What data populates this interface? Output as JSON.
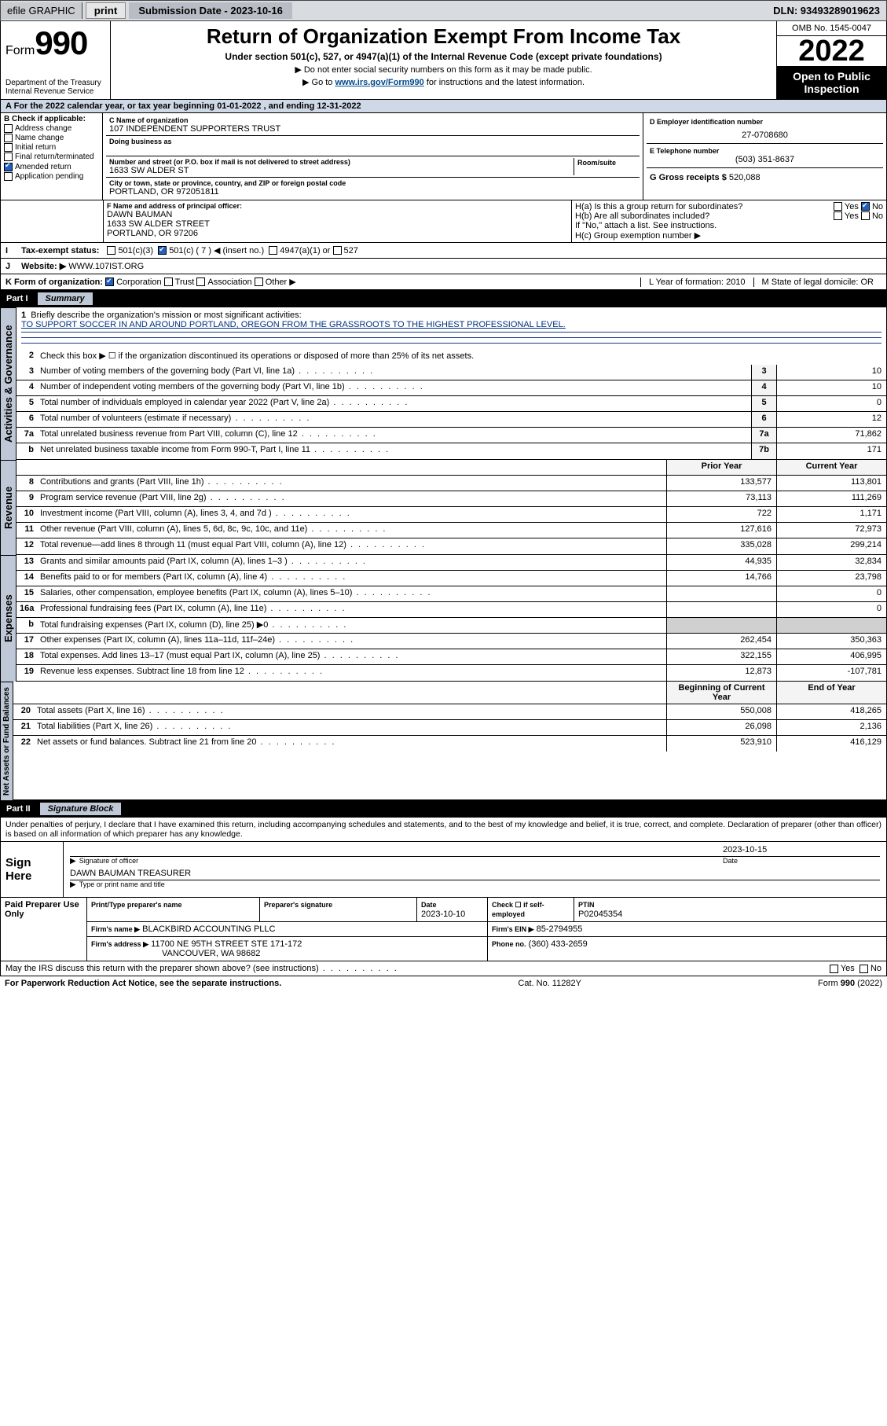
{
  "topbar": {
    "efile": "efile GRAPHIC",
    "print": "print",
    "sub_label": "Submission Date - 2023-10-16",
    "dln_label": "DLN: 93493289019623"
  },
  "header": {
    "form_word": "Form",
    "form_num": "990",
    "dept1": "Department of the Treasury",
    "dept2": "Internal Revenue Service",
    "title": "Return of Organization Exempt From Income Tax",
    "sub1": "Under section 501(c), 527, or 4947(a)(1) of the Internal Revenue Code (except private foundations)",
    "sub2": "▶ Do not enter social security numbers on this form as it may be made public.",
    "sub3_pre": "▶ Go to ",
    "sub3_link": "www.irs.gov/Form990",
    "sub3_post": " for instructions and the latest information.",
    "omb": "OMB No. 1545-0047",
    "year": "2022",
    "openpub": "Open to Public Inspection"
  },
  "line_a": "A For the 2022 calendar year, or tax year beginning 01-01-2022    , and ending 12-31-2022",
  "section_b": {
    "hdr": "B Check if applicable:",
    "opts": [
      "Address change",
      "Name change",
      "Initial return",
      "Final return/terminated",
      "Amended return",
      "Application pending"
    ],
    "checked_idx": 4
  },
  "c_block": {
    "name_lbl": "C Name of organization",
    "name": "107 INDEPENDENT SUPPORTERS TRUST",
    "dba_lbl": "Doing business as",
    "addr_lbl": "Number and street (or P.O. box if mail is not delivered to street address)",
    "room_lbl": "Room/suite",
    "addr": "1633 SW ALDER ST",
    "city_lbl": "City or town, state or province, country, and ZIP or foreign postal code",
    "city": "PORTLAND, OR  972051811"
  },
  "d_block": {
    "lbl": "D Employer identification number",
    "val": "27-0708680"
  },
  "e_block": {
    "lbl": "E Telephone number",
    "val": "(503) 351-8637"
  },
  "g_block": {
    "lbl": "G Gross receipts $",
    "val": "520,088"
  },
  "f_block": {
    "lbl": "F Name and address of principal officer:",
    "l1": "DAWN BAUMAN",
    "l2": "1633 SW ALDER STREET",
    "l3": "PORTLAND, OR  97206"
  },
  "h_block": {
    "a": "H(a)  Is this a group return for subordinates?",
    "b": "H(b)  Are all subordinates included?",
    "note": "If \"No,\" attach a list. See instructions.",
    "c": "H(c)  Group exemption number ▶",
    "yes": "Yes",
    "no": "No"
  },
  "i_row": {
    "lbl": "Tax-exempt status:",
    "o1": "501(c)(3)",
    "o2": "501(c) ( 7 ) ◀ (insert no.)",
    "o3": "4947(a)(1) or",
    "o4": "527"
  },
  "j_row": {
    "lbl": "Website: ▶",
    "val": "WWW.107IST.ORG"
  },
  "k_row": {
    "lbl": "K Form of organization:",
    "o1": "Corporation",
    "o2": "Trust",
    "o3": "Association",
    "o4": "Other ▶"
  },
  "l_row": {
    "lbl": "L Year of formation: 2010"
  },
  "m_row": {
    "lbl": "M State of legal domicile: OR"
  },
  "part1": {
    "label": "Part I",
    "title": "Summary"
  },
  "summary": {
    "l1_lbl": "Briefly describe the organization's mission or most significant activities:",
    "l1_val": "TO SUPPORT SOCCER IN AND AROUND PORTLAND, OREGON FROM THE GRASSROOTS TO THE HIGHEST PROFESSIONAL LEVEL.",
    "l2": "Check this box ▶ ☐  if the organization discontinued its operations or disposed of more than 25% of its net assets.",
    "lines_single": [
      {
        "n": "3",
        "t": "Number of voting members of the governing body (Part VI, line 1a)",
        "id": "3",
        "v": "10"
      },
      {
        "n": "4",
        "t": "Number of independent voting members of the governing body (Part VI, line 1b)",
        "id": "4",
        "v": "10"
      },
      {
        "n": "5",
        "t": "Total number of individuals employed in calendar year 2022 (Part V, line 2a)",
        "id": "5",
        "v": "0"
      },
      {
        "n": "6",
        "t": "Total number of volunteers (estimate if necessary)",
        "id": "6",
        "v": "12"
      },
      {
        "n": "7a",
        "t": "Total unrelated business revenue from Part VIII, column (C), line 12",
        "id": "7a",
        "v": "71,862"
      },
      {
        "n": "b",
        "t": "Net unrelated business taxable income from Form 990-T, Part I, line 11",
        "id": "7b",
        "v": "171"
      }
    ],
    "col_hdr_prior": "Prior Year",
    "col_hdr_curr": "Current Year",
    "revenue": [
      {
        "n": "8",
        "t": "Contributions and grants (Part VIII, line 1h)",
        "p": "133,577",
        "c": "113,801"
      },
      {
        "n": "9",
        "t": "Program service revenue (Part VIII, line 2g)",
        "p": "73,113",
        "c": "111,269"
      },
      {
        "n": "10",
        "t": "Investment income (Part VIII, column (A), lines 3, 4, and 7d )",
        "p": "722",
        "c": "1,171"
      },
      {
        "n": "11",
        "t": "Other revenue (Part VIII, column (A), lines 5, 6d, 8c, 9c, 10c, and 11e)",
        "p": "127,616",
        "c": "72,973"
      },
      {
        "n": "12",
        "t": "Total revenue—add lines 8 through 11 (must equal Part VIII, column (A), line 12)",
        "p": "335,028",
        "c": "299,214"
      }
    ],
    "expenses": [
      {
        "n": "13",
        "t": "Grants and similar amounts paid (Part IX, column (A), lines 1–3 )",
        "p": "44,935",
        "c": "32,834"
      },
      {
        "n": "14",
        "t": "Benefits paid to or for members (Part IX, column (A), line 4)",
        "p": "14,766",
        "c": "23,798"
      },
      {
        "n": "15",
        "t": "Salaries, other compensation, employee benefits (Part IX, column (A), lines 5–10)",
        "p": "",
        "c": "0"
      },
      {
        "n": "16a",
        "t": "Professional fundraising fees (Part IX, column (A), line 11e)",
        "p": "",
        "c": "0"
      },
      {
        "n": "b",
        "t": "Total fundraising expenses (Part IX, column (D), line 25) ▶0",
        "p": "SHADE",
        "c": "SHADE"
      },
      {
        "n": "17",
        "t": "Other expenses (Part IX, column (A), lines 11a–11d, 11f–24e)",
        "p": "262,454",
        "c": "350,363"
      },
      {
        "n": "18",
        "t": "Total expenses. Add lines 13–17 (must equal Part IX, column (A), line 25)",
        "p": "322,155",
        "c": "406,995"
      },
      {
        "n": "19",
        "t": "Revenue less expenses. Subtract line 18 from line 12",
        "p": "12,873",
        "c": "-107,781"
      }
    ],
    "net_hdr_b": "Beginning of Current Year",
    "net_hdr_e": "End of Year",
    "net": [
      {
        "n": "20",
        "t": "Total assets (Part X, line 16)",
        "p": "550,008",
        "c": "418,265"
      },
      {
        "n": "21",
        "t": "Total liabilities (Part X, line 26)",
        "p": "26,098",
        "c": "2,136"
      },
      {
        "n": "22",
        "t": "Net assets or fund balances. Subtract line 21 from line 20",
        "p": "523,910",
        "c": "416,129"
      }
    ]
  },
  "vtabs": {
    "ag": "Activities & Governance",
    "rev": "Revenue",
    "exp": "Expenses",
    "net": "Net Assets or\nFund Balances"
  },
  "part2": {
    "label": "Part II",
    "title": "Signature Block"
  },
  "penalty": "Under penalties of perjury, I declare that I have examined this return, including accompanying schedules and statements, and to the best of my knowledge and belief, it is true, correct, and complete. Declaration of preparer (other than officer) is based on all information of which preparer has any knowledge.",
  "sign": {
    "here": "Sign Here",
    "sig_lbl": "Signature of officer",
    "date_lbl": "Date",
    "date_val": "2023-10-15",
    "name": "DAWN BAUMAN  TREASURER",
    "name_lbl": "Type or print name and title"
  },
  "prep": {
    "left": "Paid Preparer Use Only",
    "h1": "Print/Type preparer's name",
    "h2": "Preparer's signature",
    "h3": "Date",
    "h3v": "2023-10-10",
    "h4": "Check ☐ if self-employed",
    "h5": "PTIN",
    "h5v": "P02045354",
    "firm_lbl": "Firm's name    ▶",
    "firm": "BLACKBIRD ACCOUNTING PLLC",
    "ein_lbl": "Firm's EIN ▶",
    "ein": "85-2794955",
    "addr_lbl": "Firm's address ▶",
    "addr1": "11700 NE 95TH STREET STE 171-172",
    "addr2": "VANCOUVER, WA  98682",
    "phone_lbl": "Phone no.",
    "phone": "(360) 433-2659"
  },
  "bottom": {
    "q": "May the IRS discuss this return with the preparer shown above? (see instructions)",
    "yes": "Yes",
    "no": "No",
    "pra": "For Paperwork Reduction Act Notice, see the separate instructions.",
    "cat": "Cat. No. 11282Y",
    "form": "Form 990 (2022)"
  }
}
